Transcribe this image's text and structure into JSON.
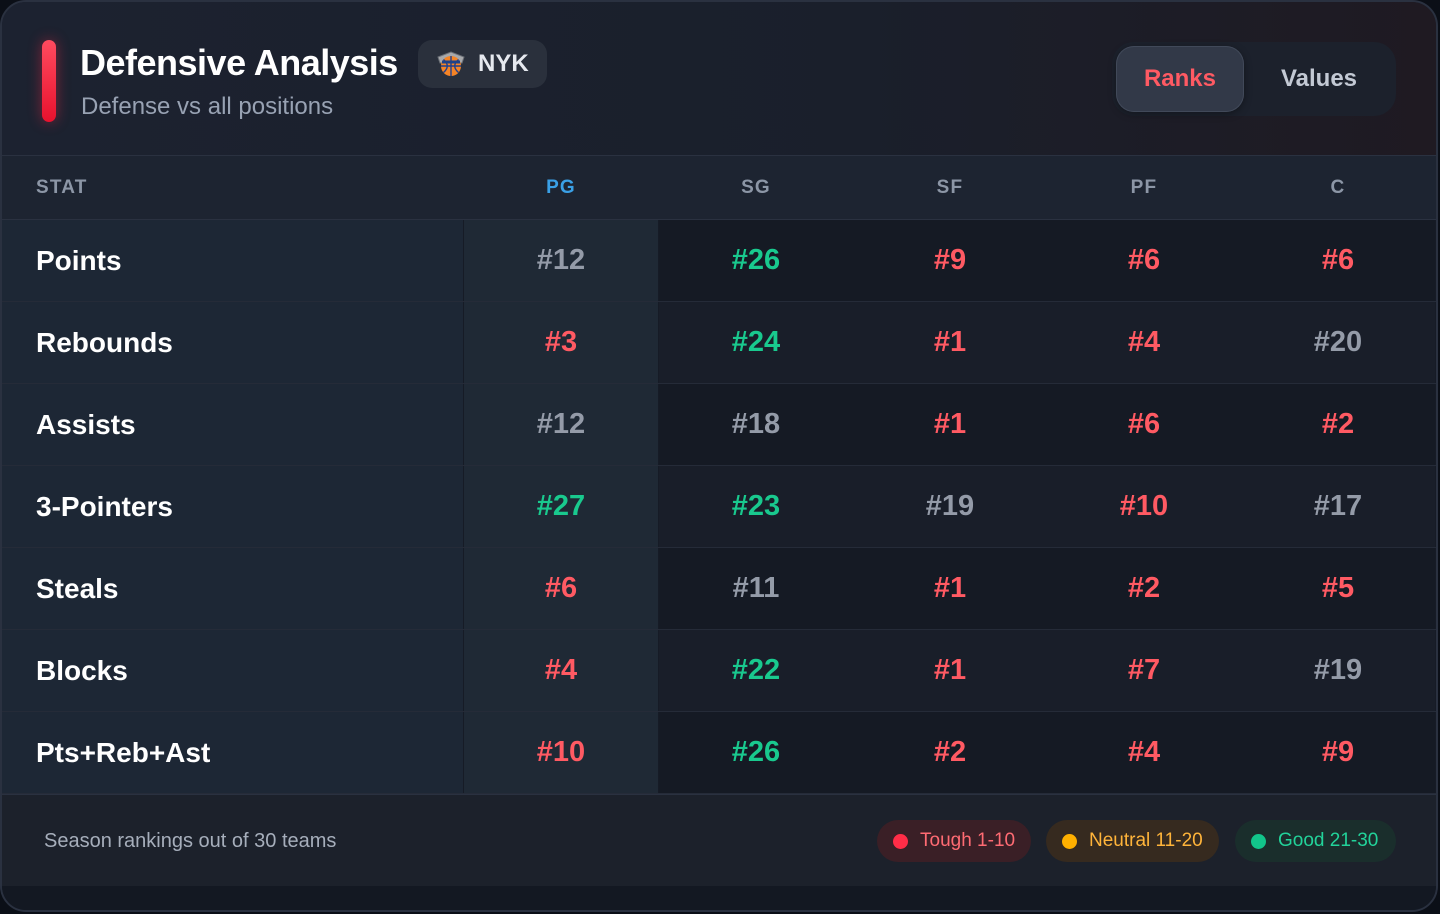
{
  "header": {
    "title": "Defensive Analysis",
    "subtitle": "Defense vs all positions",
    "team": {
      "abbr": "NYK",
      "logo_icon": "knicks-logo-icon"
    },
    "toggle": {
      "active": "Ranks",
      "inactive": "Values"
    }
  },
  "table": {
    "stat_header": "STAT",
    "positions": [
      "PG",
      "SG",
      "SF",
      "PF",
      "C"
    ],
    "active_position": "PG",
    "rows": [
      {
        "stat": "Points",
        "ranks": [
          "#12",
          "#26",
          "#9",
          "#6",
          "#6"
        ],
        "tiers": [
          "neutral",
          "good",
          "tough",
          "tough",
          "tough"
        ]
      },
      {
        "stat": "Rebounds",
        "ranks": [
          "#3",
          "#24",
          "#1",
          "#4",
          "#20"
        ],
        "tiers": [
          "tough",
          "good",
          "tough",
          "tough",
          "neutral"
        ]
      },
      {
        "stat": "Assists",
        "ranks": [
          "#12",
          "#18",
          "#1",
          "#6",
          "#2"
        ],
        "tiers": [
          "neutral",
          "neutral",
          "tough",
          "tough",
          "tough"
        ]
      },
      {
        "stat": "3-Pointers",
        "ranks": [
          "#27",
          "#23",
          "#19",
          "#10",
          "#17"
        ],
        "tiers": [
          "good",
          "good",
          "neutral",
          "tough",
          "neutral"
        ]
      },
      {
        "stat": "Steals",
        "ranks": [
          "#6",
          "#11",
          "#1",
          "#2",
          "#5"
        ],
        "tiers": [
          "tough",
          "neutral",
          "tough",
          "tough",
          "tough"
        ]
      },
      {
        "stat": "Blocks",
        "ranks": [
          "#4",
          "#22",
          "#1",
          "#7",
          "#19"
        ],
        "tiers": [
          "tough",
          "good",
          "tough",
          "tough",
          "neutral"
        ]
      },
      {
        "stat": "Pts+Reb+Ast",
        "ranks": [
          "#10",
          "#26",
          "#2",
          "#4",
          "#9"
        ],
        "tiers": [
          "tough",
          "good",
          "tough",
          "tough",
          "tough"
        ]
      }
    ]
  },
  "footer": {
    "note": "Season rankings out of 30 teams",
    "legend": {
      "tough": "Tough 1-10",
      "neutral": "Neutral 11-20",
      "good": "Good 21-30"
    }
  },
  "colors": {
    "tough": "#ff5a63",
    "neutral": "#949ba8",
    "good": "#19c98e",
    "accent": "#e8122e",
    "active_position": "#3aa0e6"
  }
}
